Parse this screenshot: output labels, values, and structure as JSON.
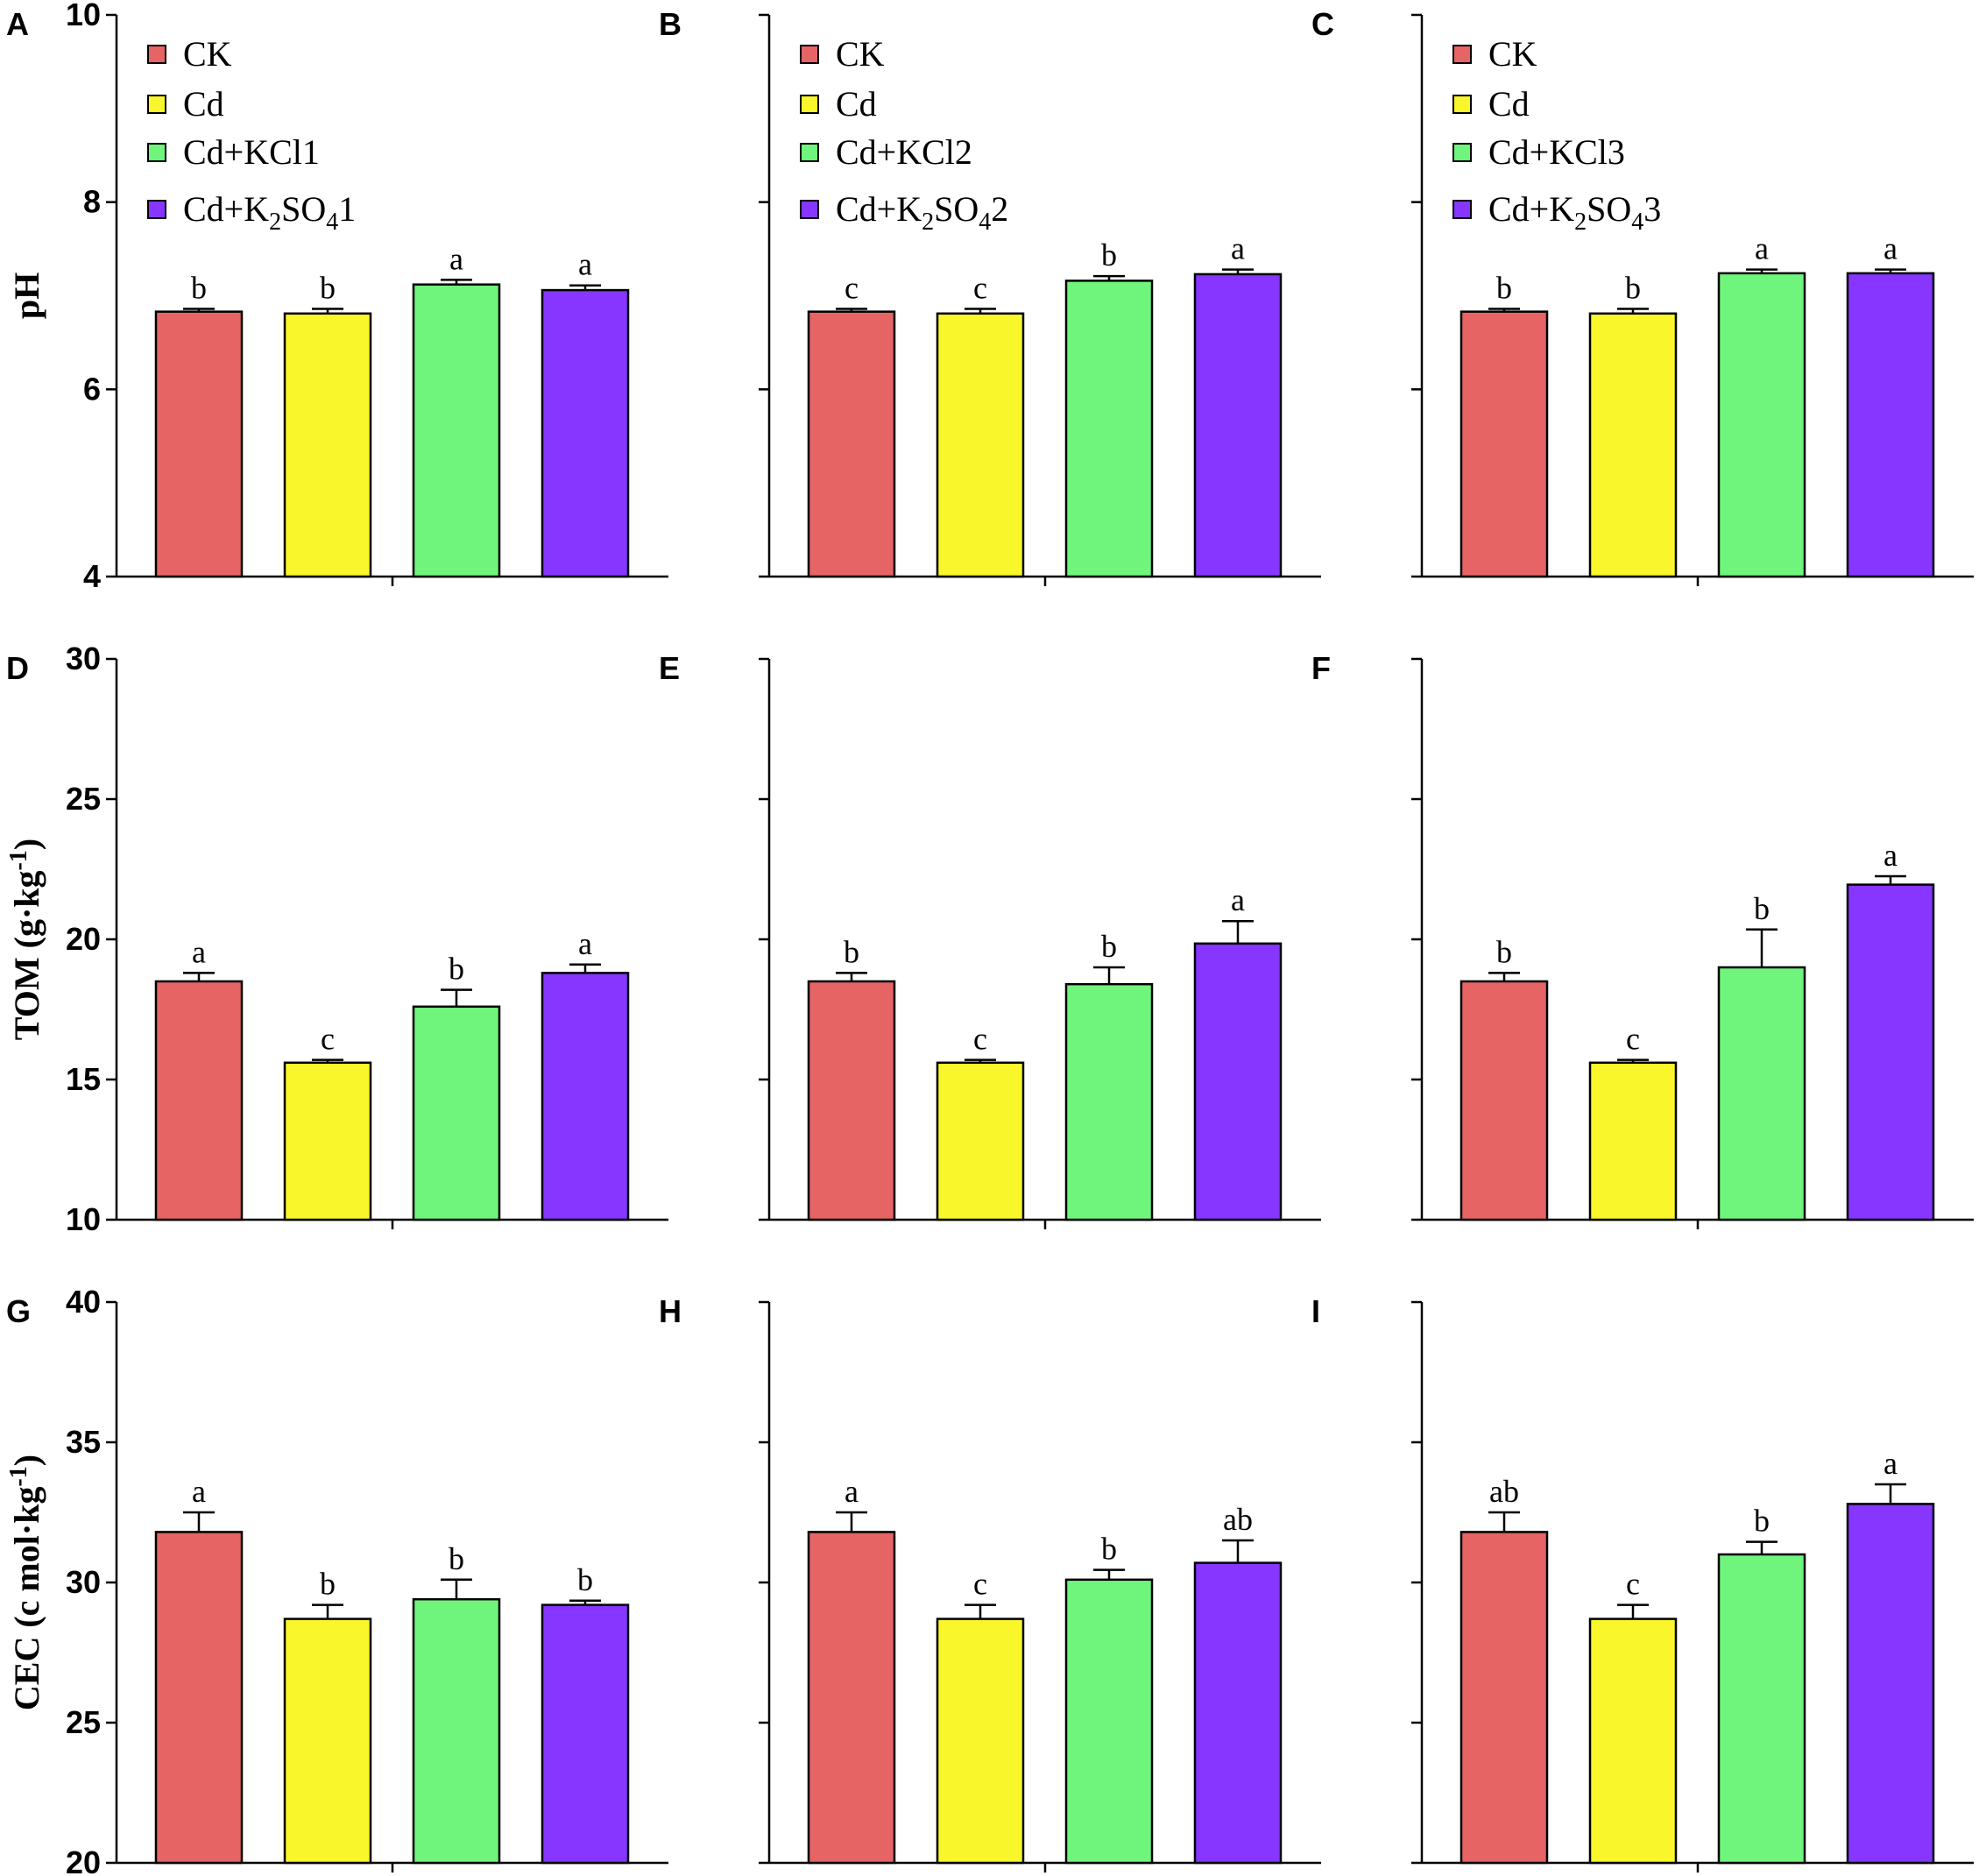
{
  "legend": {
    "series_names": {
      "col1": [
        "CK",
        "Cd",
        "Cd+KCl1",
        "Cd+K2SO41"
      ],
      "col2": [
        "CK",
        "Cd",
        "Cd+KCl2",
        "Cd+K2SO42"
      ],
      "col3": [
        "CK",
        "Cd",
        "Cd+KCl3",
        "Cd+K2SO43"
      ]
    },
    "display": {
      "col1": [
        [
          "CK"
        ],
        [
          "Cd"
        ],
        [
          "Cd+KCl1"
        ],
        [
          "Cd+K",
          "2",
          "SO",
          "4",
          "1"
        ]
      ],
      "col2": [
        [
          "CK"
        ],
        [
          "Cd"
        ],
        [
          "Cd+KCl2"
        ],
        [
          "Cd+K",
          "2",
          "SO",
          "4",
          "2"
        ]
      ],
      "col3": [
        [
          "CK"
        ],
        [
          "Cd"
        ],
        [
          "Cd+KCl3"
        ],
        [
          "Cd+K",
          "2",
          "SO",
          "4",
          "3"
        ]
      ]
    }
  },
  "colors": [
    "#e66464",
    "#f9f62b",
    "#70f57c",
    "#8636ff"
  ],
  "row_labels": {
    "row1": [
      "pH"
    ],
    "row2": [
      "TOM (g·kg",
      "-1",
      ")"
    ],
    "row3": [
      "CEC (c mol·kg",
      "-1",
      ")"
    ]
  },
  "chart_data": [
    {
      "panel": "A",
      "type": "bar",
      "ylabel": "pH",
      "ylim": [
        4,
        10
      ],
      "yticks": [
        4,
        6,
        8,
        10
      ],
      "values": [
        6.83,
        6.81,
        7.12,
        7.06
      ],
      "errors": [
        0.03,
        0.05,
        0.05,
        0.05
      ],
      "letters": [
        "b",
        "b",
        "a",
        "a"
      ],
      "series_names": [
        "CK",
        "Cd",
        "Cd+KCl1",
        "Cd+K2SO41"
      ]
    },
    {
      "panel": "B",
      "type": "bar",
      "ylabel": "",
      "ylim": [
        4,
        10
      ],
      "yticks": [
        4,
        6,
        8,
        10
      ],
      "values": [
        6.83,
        6.81,
        7.16,
        7.23
      ],
      "errors": [
        0.03,
        0.05,
        0.05,
        0.05
      ],
      "letters": [
        "c",
        "c",
        "b",
        "a"
      ],
      "series_names": [
        "CK",
        "Cd",
        "Cd+KCl2",
        "Cd+K2SO42"
      ]
    },
    {
      "panel": "C",
      "type": "bar",
      "ylabel": "",
      "ylim": [
        4,
        10
      ],
      "yticks": [
        4,
        6,
        8,
        10
      ],
      "values": [
        6.83,
        6.81,
        7.24,
        7.24
      ],
      "errors": [
        0.03,
        0.05,
        0.04,
        0.04
      ],
      "letters": [
        "b",
        "b",
        "a",
        "a"
      ],
      "series_names": [
        "CK",
        "Cd",
        "Cd+KCl3",
        "Cd+K2SO43"
      ]
    },
    {
      "panel": "D",
      "type": "bar",
      "ylabel": "TOM (g·kg-1)",
      "ylim": [
        10,
        30
      ],
      "yticks": [
        10,
        15,
        20,
        25,
        30
      ],
      "values": [
        18.5,
        15.6,
        17.6,
        18.8
      ],
      "errors": [
        0.3,
        0.1,
        0.6,
        0.3
      ],
      "letters": [
        "a",
        "c",
        "b",
        "a"
      ],
      "series_names": [
        "CK",
        "Cd",
        "Cd+KCl1",
        "Cd+K2SO41"
      ]
    },
    {
      "panel": "E",
      "type": "bar",
      "ylabel": "",
      "ylim": [
        10,
        30
      ],
      "yticks": [
        10,
        15,
        20,
        25,
        30
      ],
      "values": [
        18.5,
        15.6,
        18.4,
        19.85
      ],
      "errors": [
        0.3,
        0.1,
        0.6,
        0.8
      ],
      "letters": [
        "b",
        "c",
        "b",
        "a"
      ],
      "series_names": [
        "CK",
        "Cd",
        "Cd+KCl2",
        "Cd+K2SO42"
      ]
    },
    {
      "panel": "F",
      "type": "bar",
      "ylabel": "",
      "ylim": [
        10,
        30
      ],
      "yticks": [
        10,
        15,
        20,
        25,
        30
      ],
      "values": [
        18.5,
        15.6,
        19.0,
        21.95
      ],
      "errors": [
        0.3,
        0.1,
        1.35,
        0.3
      ],
      "letters": [
        "b",
        "c",
        "b",
        "a"
      ],
      "series_names": [
        "CK",
        "Cd",
        "Cd+KCl3",
        "Cd+K2SO43"
      ]
    },
    {
      "panel": "G",
      "type": "bar",
      "ylabel": "CEC (c mol·kg-1)",
      "ylim": [
        20,
        40
      ],
      "yticks": [
        20,
        25,
        30,
        35,
        40
      ],
      "values": [
        31.8,
        28.7,
        29.4,
        29.2
      ],
      "errors": [
        0.7,
        0.5,
        0.7,
        0.15
      ],
      "letters": [
        "a",
        "b",
        "b",
        "b"
      ],
      "series_names": [
        "CK",
        "Cd",
        "Cd+KCl1",
        "Cd+K2SO41"
      ]
    },
    {
      "panel": "H",
      "type": "bar",
      "ylabel": "",
      "ylim": [
        20,
        40
      ],
      "yticks": [
        20,
        25,
        30,
        35,
        40
      ],
      "values": [
        31.8,
        28.7,
        30.1,
        30.7
      ],
      "errors": [
        0.7,
        0.5,
        0.35,
        0.8
      ],
      "letters": [
        "a",
        "c",
        "b",
        "ab"
      ],
      "series_names": [
        "CK",
        "Cd",
        "Cd+KCl2",
        "Cd+K2SO42"
      ]
    },
    {
      "panel": "I",
      "type": "bar",
      "ylabel": "",
      "ylim": [
        20,
        40
      ],
      "yticks": [
        20,
        25,
        30,
        35,
        40
      ],
      "values": [
        31.8,
        28.7,
        31.0,
        32.8
      ],
      "errors": [
        0.7,
        0.5,
        0.45,
        0.7
      ],
      "letters": [
        "ab",
        "c",
        "b",
        "a"
      ],
      "series_names": [
        "CK",
        "Cd",
        "Cd+KCl3",
        "Cd+K2SO43"
      ]
    }
  ]
}
